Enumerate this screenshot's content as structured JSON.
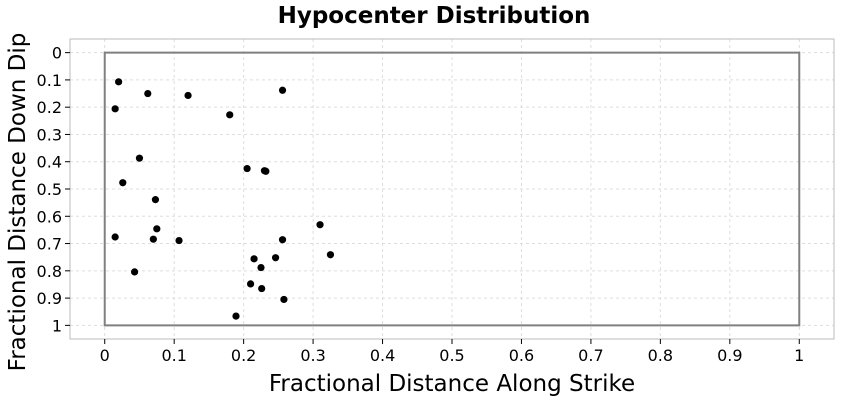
{
  "chart_data": {
    "type": "scatter",
    "title": "Hypocenter Distribution",
    "xlabel": "Fractional Distance Along Strike",
    "ylabel": "Fractional Distance Down Dip",
    "xlim": [
      -0.05,
      1.05
    ],
    "ylim": [
      1.05,
      -0.05
    ],
    "y_inverted": true,
    "grid": true,
    "xticks": [
      "0",
      "0.1",
      "0.2",
      "0.3",
      "0.4",
      "0.5",
      "0.6",
      "0.7",
      "0.8",
      "0.9",
      "1"
    ],
    "yticks": [
      "0",
      "0.1",
      "0.2",
      "0.3",
      "0.4",
      "0.5",
      "0.6",
      "0.7",
      "0.8",
      "0.9",
      "1"
    ],
    "fault_box": {
      "x": [
        0,
        1
      ],
      "y": [
        0,
        1
      ]
    },
    "colors": {
      "points": "#000000",
      "box": "#808080",
      "grid": "#dddddd"
    },
    "series": [
      {
        "x": [
          0.02,
          0.062,
          0.12,
          0.256,
          0.015,
          0.18,
          0.05,
          0.205,
          0.23,
          0.232,
          0.026,
          0.073,
          0.31,
          0.075,
          0.015,
          0.07,
          0.107,
          0.256,
          0.325,
          0.215,
          0.246,
          0.225,
          0.043,
          0.21,
          0.226,
          0.258,
          0.189
        ],
        "y": [
          0.107,
          0.15,
          0.157,
          0.138,
          0.206,
          0.228,
          0.387,
          0.425,
          0.433,
          0.435,
          0.477,
          0.539,
          0.631,
          0.646,
          0.676,
          0.684,
          0.689,
          0.686,
          0.741,
          0.756,
          0.752,
          0.788,
          0.804,
          0.848,
          0.865,
          0.905,
          0.966
        ]
      }
    ]
  }
}
